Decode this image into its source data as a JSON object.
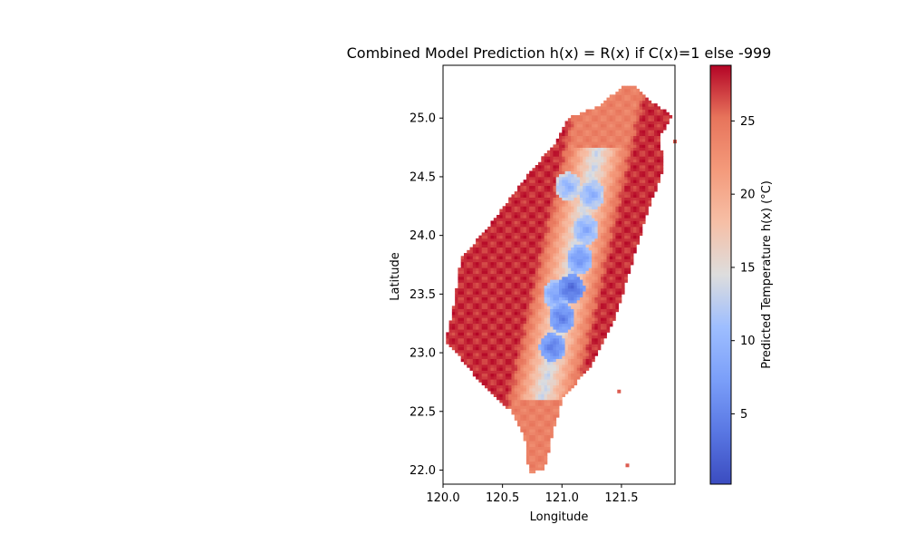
{
  "chart_data": {
    "type": "heatmap",
    "title": "Combined Model Prediction h(x) = R(x) if C(x)=1 else -999",
    "xlabel": "Longitude",
    "ylabel": "Latitude",
    "xlim": [
      120.0,
      121.95
    ],
    "ylim": [
      21.88,
      25.45
    ],
    "x_ticks": [
      "120.0",
      "120.5",
      "121.0",
      "121.5"
    ],
    "y_ticks": [
      "22.0",
      "22.5",
      "23.0",
      "23.5",
      "24.0",
      "24.5",
      "25.0"
    ],
    "colorbar": {
      "label": "Predicted Temperature h(x) (°C)",
      "range": [
        0.2,
        28.8
      ],
      "ticks": [
        "5",
        "10",
        "15",
        "20",
        "25"
      ],
      "colormap": "coolwarm"
    },
    "grid": false,
    "series": [
      {
        "values_description": "Predicted temperature over Taiwan land cells; warm (~25-28°C) in lowlands and coasts, cool (~3-12°C) along the Central Mountain Range.",
        "outline_lat_lon": [
          [
            25.28,
            121.53
          ],
          [
            25.28,
            121.62
          ],
          [
            25.15,
            121.73
          ],
          [
            25.02,
            121.93
          ],
          [
            24.85,
            121.83
          ],
          [
            24.55,
            121.85
          ],
          [
            24.2,
            121.72
          ],
          [
            23.8,
            121.6
          ],
          [
            23.3,
            121.45
          ],
          [
            22.9,
            121.25
          ],
          [
            22.6,
            121.0
          ],
          [
            22.3,
            120.92
          ],
          [
            22.0,
            120.85
          ],
          [
            21.98,
            120.72
          ],
          [
            22.3,
            120.68
          ],
          [
            22.5,
            120.58
          ],
          [
            22.7,
            120.35
          ],
          [
            22.95,
            120.15
          ],
          [
            23.1,
            120.02
          ],
          [
            23.45,
            120.1
          ],
          [
            23.8,
            120.15
          ],
          [
            24.1,
            120.4
          ],
          [
            24.5,
            120.7
          ],
          [
            24.8,
            120.95
          ],
          [
            25.0,
            121.05
          ],
          [
            25.1,
            121.3
          ]
        ],
        "cold_spots": [
          [
            23.55,
            121.08,
            2.5
          ],
          [
            23.3,
            121.0,
            4.0
          ],
          [
            23.05,
            120.92,
            4.0
          ],
          [
            23.8,
            121.15,
            6.0
          ],
          [
            24.05,
            121.2,
            8.0
          ],
          [
            24.35,
            121.25,
            8.5
          ],
          [
            24.42,
            121.05,
            9.0
          ],
          [
            23.5,
            120.95,
            7.0
          ]
        ],
        "islands": [
          [
            24.8,
            121.95,
            26.0
          ],
          [
            22.67,
            121.48,
            26.0
          ],
          [
            22.04,
            121.55,
            26.0
          ]
        ]
      }
    ]
  }
}
